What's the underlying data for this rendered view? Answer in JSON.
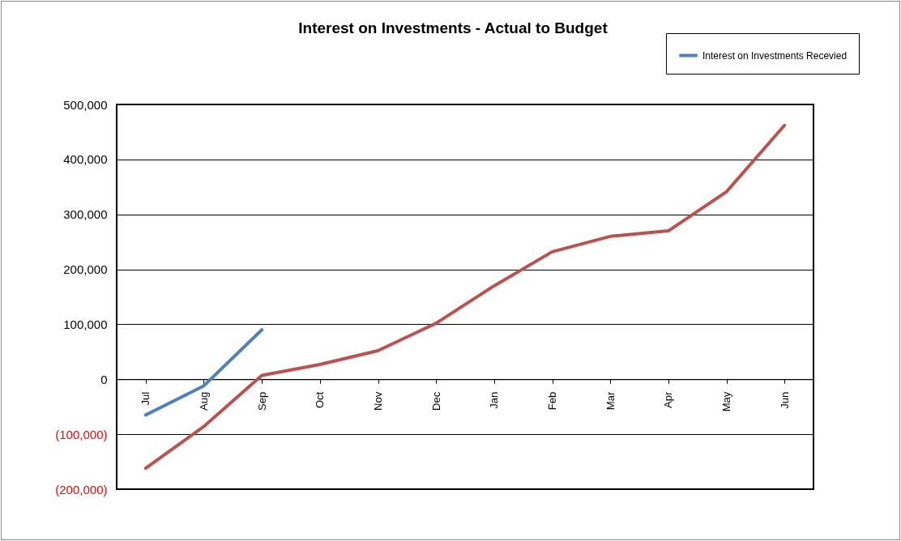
{
  "chart_data": {
    "type": "line",
    "title": "Interest on Investments - Actual to Budget",
    "categories": [
      "Jul",
      "Aug",
      "Sep",
      "Oct",
      "Nov",
      "Dec",
      "Jan",
      "Feb",
      "Mar",
      "Apr",
      "May",
      "Jun"
    ],
    "series": [
      {
        "name": "Interest on Investments Recevied",
        "color": "#4f81bd",
        "values": [
          -65000,
          -12000,
          90000,
          null,
          null,
          null,
          null,
          null,
          null,
          null,
          null,
          null
        ]
      },
      {
        "color": "#c0504d",
        "values": [
          -162000,
          -86000,
          7000,
          27000,
          52000,
          102000,
          170000,
          232000,
          260000,
          270000,
          341000,
          462000
        ]
      }
    ],
    "ylim": [
      -200000,
      500000
    ],
    "yticks": [
      {
        "value": -200000,
        "label": "(200,000)"
      },
      {
        "value": -100000,
        "label": "(100,000)"
      },
      {
        "value": 0,
        "label": "0"
      },
      {
        "value": 100000,
        "label": "100,000"
      },
      {
        "value": 200000,
        "label": "200,000"
      },
      {
        "value": 300000,
        "label": "300,000"
      },
      {
        "value": 400000,
        "label": "400,000"
      },
      {
        "value": 500000,
        "label": "500,000"
      }
    ],
    "grid": "y",
    "legend": "top right",
    "marker": "none",
    "line_style": "solid"
  }
}
